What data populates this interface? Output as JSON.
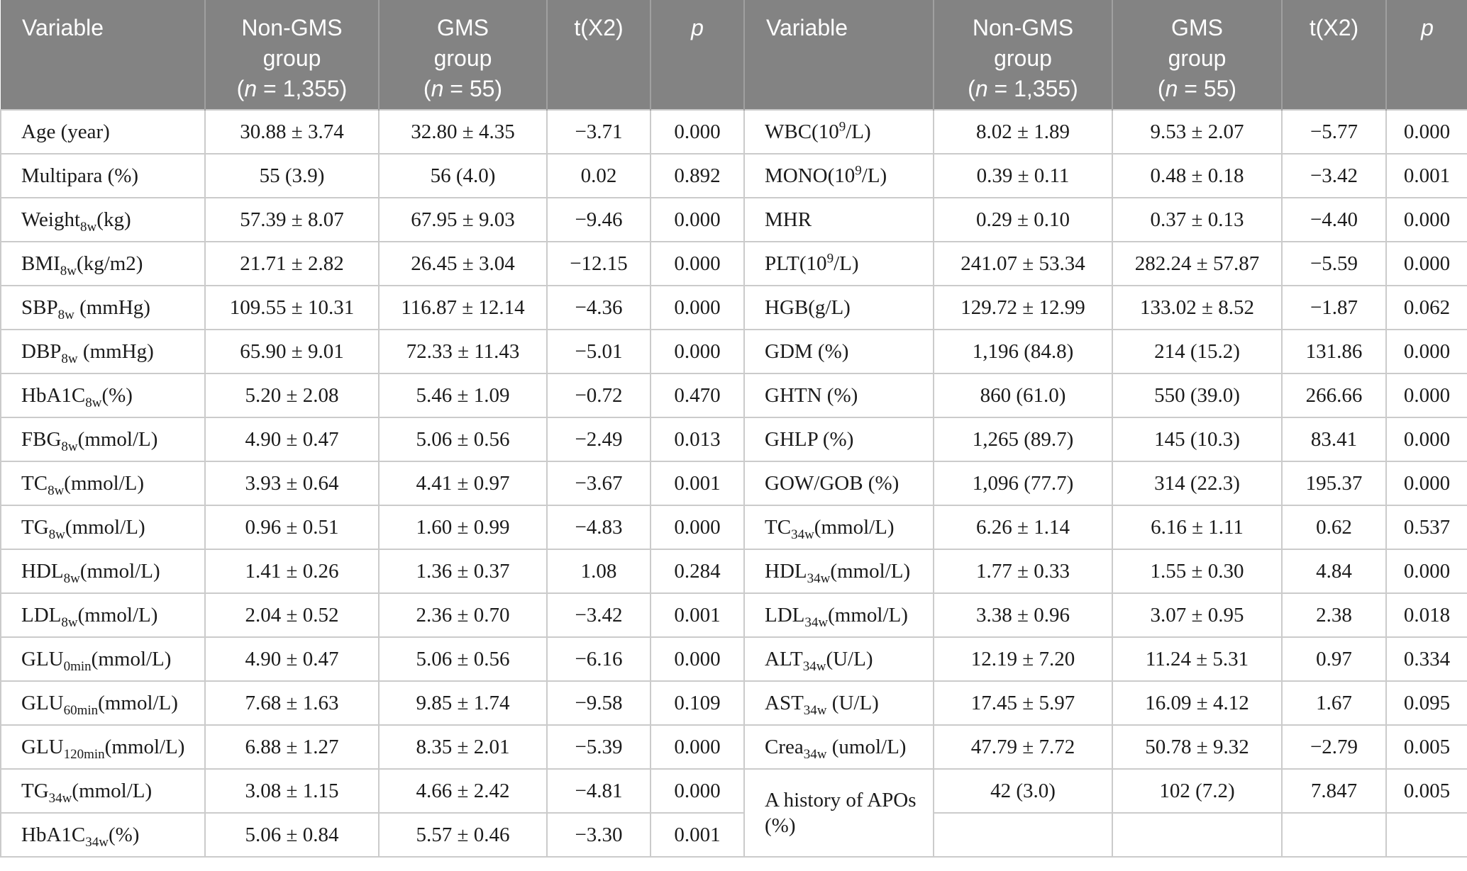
{
  "table": {
    "description": "Comparison of variables between Non-GMS group and GMS group",
    "colors": {
      "header_bg": "#838383",
      "header_text": "#ffffff",
      "header_divider": "#a0a0a0",
      "cell_border": "#cbcbcb",
      "cell_text": "#1b1b1b",
      "cell_bg": "#ffffff"
    },
    "columns": [
      {
        "align": "left",
        "lines": [
          [
            [
              "Variable"
            ]
          ]
        ]
      },
      {
        "lines": [
          [
            [
              "Non-GMS"
            ]
          ],
          [
            [
              "group"
            ]
          ],
          [
            [
              "("
            ],
            [
              "n",
              "i"
            ],
            [
              " = 1,355)"
            ]
          ]
        ]
      },
      {
        "lines": [
          [
            [
              "GMS"
            ]
          ],
          [
            [
              "group"
            ]
          ],
          [
            [
              "("
            ],
            [
              "n",
              "i"
            ],
            [
              " = 55)"
            ]
          ]
        ]
      },
      {
        "lines": [
          [
            [
              "t(X2)"
            ]
          ]
        ]
      },
      {
        "lines": [
          [
            [
              "p",
              "i"
            ]
          ]
        ]
      },
      {
        "align": "left",
        "lines": [
          [
            [
              "Variable"
            ]
          ]
        ]
      },
      {
        "lines": [
          [
            [
              "Non-GMS"
            ]
          ],
          [
            [
              "group"
            ]
          ],
          [
            [
              "("
            ],
            [
              "n",
              "i"
            ],
            [
              " = 1,355)"
            ]
          ]
        ]
      },
      {
        "lines": [
          [
            [
              "GMS"
            ]
          ],
          [
            [
              "group"
            ]
          ],
          [
            [
              "("
            ],
            [
              "n",
              "i"
            ],
            [
              " = 55)"
            ]
          ]
        ]
      },
      {
        "lines": [
          [
            [
              "t(X2)"
            ]
          ]
        ]
      },
      {
        "lines": [
          [
            [
              "p",
              "i"
            ]
          ]
        ]
      }
    ],
    "rows": [
      {
        "cells": [
          {
            "var": true,
            "t": [
              [
                "Age (year)"
              ]
            ]
          },
          {
            "t": "30.88 ± 3.74"
          },
          {
            "t": "32.80 ± 4.35"
          },
          {
            "t": "−3.71"
          },
          {
            "t": "0.000"
          },
          {
            "var": true,
            "t": [
              [
                "WBC(10"
              ],
              [
                "9",
                "sup"
              ],
              [
                "/L)"
              ]
            ]
          },
          {
            "t": "8.02 ± 1.89"
          },
          {
            "t": "9.53 ± 2.07"
          },
          {
            "t": "−5.77"
          },
          {
            "t": "0.000"
          }
        ]
      },
      {
        "cells": [
          {
            "var": true,
            "t": [
              [
                "Multipara (%)"
              ]
            ]
          },
          {
            "t": "55 (3.9)"
          },
          {
            "t": "56 (4.0)"
          },
          {
            "t": "0.02"
          },
          {
            "t": "0.892"
          },
          {
            "var": true,
            "t": [
              [
                "MONO(10"
              ],
              [
                "9",
                "sup"
              ],
              [
                "/L)"
              ]
            ]
          },
          {
            "t": "0.39 ± 0.11"
          },
          {
            "t": "0.48 ± 0.18"
          },
          {
            "t": "−3.42"
          },
          {
            "t": "0.001"
          }
        ]
      },
      {
        "cells": [
          {
            "var": true,
            "t": [
              [
                "Weight"
              ],
              [
                "8w",
                "sub"
              ],
              [
                "(kg)"
              ]
            ]
          },
          {
            "t": "57.39 ± 8.07"
          },
          {
            "t": "67.95 ± 9.03"
          },
          {
            "t": "−9.46"
          },
          {
            "t": "0.000"
          },
          {
            "var": true,
            "t": [
              [
                "MHR"
              ]
            ]
          },
          {
            "t": "0.29 ± 0.10"
          },
          {
            "t": "0.37 ± 0.13"
          },
          {
            "t": "−4.40"
          },
          {
            "t": "0.000"
          }
        ]
      },
      {
        "cells": [
          {
            "var": true,
            "t": [
              [
                "BMI"
              ],
              [
                "8w",
                "sub"
              ],
              [
                "(kg/m2)"
              ]
            ]
          },
          {
            "t": "21.71 ± 2.82"
          },
          {
            "t": "26.45 ± 3.04"
          },
          {
            "t": "−12.15"
          },
          {
            "t": "0.000"
          },
          {
            "var": true,
            "t": [
              [
                "PLT(10"
              ],
              [
                "9",
                "sup"
              ],
              [
                "/L)"
              ]
            ]
          },
          {
            "t": "241.07 ± 53.34"
          },
          {
            "t": "282.24 ± 57.87"
          },
          {
            "t": "−5.59"
          },
          {
            "t": "0.000"
          }
        ]
      },
      {
        "cells": [
          {
            "var": true,
            "t": [
              [
                "SBP"
              ],
              [
                "8w",
                "sub"
              ],
              [
                " (mmHg)"
              ]
            ]
          },
          {
            "t": "109.55 ± 10.31"
          },
          {
            "t": "116.87 ± 12.14"
          },
          {
            "t": "−4.36"
          },
          {
            "t": "0.000"
          },
          {
            "var": true,
            "t": [
              [
                "HGB(g/L)"
              ]
            ]
          },
          {
            "t": "129.72 ± 12.99"
          },
          {
            "t": "133.02 ± 8.52"
          },
          {
            "t": "−1.87"
          },
          {
            "t": "0.062"
          }
        ]
      },
      {
        "cells": [
          {
            "var": true,
            "t": [
              [
                "DBP"
              ],
              [
                "8w",
                "sub"
              ],
              [
                " (mmHg)"
              ]
            ]
          },
          {
            "t": "65.90 ± 9.01"
          },
          {
            "t": "72.33 ± 11.43"
          },
          {
            "t": "−5.01"
          },
          {
            "t": "0.000"
          },
          {
            "var": true,
            "t": [
              [
                "GDM (%)"
              ]
            ]
          },
          {
            "t": "1,196 (84.8)"
          },
          {
            "t": "214 (15.2)"
          },
          {
            "t": "131.86"
          },
          {
            "t": "0.000"
          }
        ]
      },
      {
        "cells": [
          {
            "var": true,
            "t": [
              [
                "HbA1C"
              ],
              [
                "8w",
                "sub"
              ],
              [
                "(%)"
              ]
            ]
          },
          {
            "t": "5.20 ± 2.08"
          },
          {
            "t": "5.46 ± 1.09"
          },
          {
            "t": "−0.72"
          },
          {
            "t": "0.470"
          },
          {
            "var": true,
            "t": [
              [
                "GHTN (%)"
              ]
            ]
          },
          {
            "t": "860 (61.0)"
          },
          {
            "t": "550 (39.0)"
          },
          {
            "t": "266.66"
          },
          {
            "t": "0.000"
          }
        ]
      },
      {
        "cells": [
          {
            "var": true,
            "t": [
              [
                "FBG"
              ],
              [
                "8w",
                "sub"
              ],
              [
                "(mmol/L)"
              ]
            ]
          },
          {
            "t": "4.90 ± 0.47"
          },
          {
            "t": "5.06 ± 0.56"
          },
          {
            "t": "−2.49"
          },
          {
            "t": "0.013"
          },
          {
            "var": true,
            "t": [
              [
                "GHLP (%)"
              ]
            ]
          },
          {
            "t": "1,265 (89.7)"
          },
          {
            "t": "145 (10.3)"
          },
          {
            "t": "83.41"
          },
          {
            "t": "0.000"
          }
        ]
      },
      {
        "cells": [
          {
            "var": true,
            "t": [
              [
                "TC"
              ],
              [
                "8w",
                "sub"
              ],
              [
                "(mmol/L)"
              ]
            ]
          },
          {
            "t": "3.93 ± 0.64"
          },
          {
            "t": "4.41 ± 0.97"
          },
          {
            "t": "−3.67"
          },
          {
            "t": "0.001"
          },
          {
            "var": true,
            "t": [
              [
                "GOW/GOB (%)"
              ]
            ]
          },
          {
            "t": "1,096 (77.7)"
          },
          {
            "t": "314 (22.3)"
          },
          {
            "t": "195.37"
          },
          {
            "t": "0.000"
          }
        ]
      },
      {
        "cells": [
          {
            "var": true,
            "t": [
              [
                "TG"
              ],
              [
                "8w",
                "sub"
              ],
              [
                "(mmol/L)"
              ]
            ]
          },
          {
            "t": "0.96 ± 0.51"
          },
          {
            "t": "1.60 ± 0.99"
          },
          {
            "t": "−4.83"
          },
          {
            "t": "0.000"
          },
          {
            "var": true,
            "t": [
              [
                "TC"
              ],
              [
                "34w",
                "sub"
              ],
              [
                "(mmol/L)"
              ]
            ]
          },
          {
            "t": "6.26 ± 1.14"
          },
          {
            "t": "6.16 ± 1.11"
          },
          {
            "t": "0.62"
          },
          {
            "t": "0.537"
          }
        ]
      },
      {
        "cells": [
          {
            "var": true,
            "t": [
              [
                "HDL"
              ],
              [
                "8w",
                "sub"
              ],
              [
                "(mmol/L)"
              ]
            ]
          },
          {
            "t": "1.41 ± 0.26"
          },
          {
            "t": "1.36 ± 0.37"
          },
          {
            "t": "1.08"
          },
          {
            "t": "0.284"
          },
          {
            "var": true,
            "t": [
              [
                "HDL"
              ],
              [
                "34w",
                "sub"
              ],
              [
                "(mmol/L)"
              ]
            ]
          },
          {
            "t": "1.77 ± 0.33"
          },
          {
            "t": "1.55 ± 0.30"
          },
          {
            "t": "4.84"
          },
          {
            "t": "0.000"
          }
        ]
      },
      {
        "cells": [
          {
            "var": true,
            "t": [
              [
                "LDL"
              ],
              [
                "8w",
                "sub"
              ],
              [
                "(mmol/L)"
              ]
            ]
          },
          {
            "t": "2.04 ± 0.52"
          },
          {
            "t": "2.36 ± 0.70"
          },
          {
            "t": "−3.42"
          },
          {
            "t": "0.001"
          },
          {
            "var": true,
            "t": [
              [
                "LDL"
              ],
              [
                "34w",
                "sub"
              ],
              [
                "(mmol/L)"
              ]
            ]
          },
          {
            "t": "3.38 ± 0.96"
          },
          {
            "t": "3.07 ± 0.95"
          },
          {
            "t": "2.38"
          },
          {
            "t": "0.018"
          }
        ]
      },
      {
        "cells": [
          {
            "var": true,
            "t": [
              [
                "GLU"
              ],
              [
                "0min",
                "sub"
              ],
              [
                "(mmol/L)"
              ]
            ]
          },
          {
            "t": "4.90 ± 0.47"
          },
          {
            "t": "5.06 ± 0.56"
          },
          {
            "t": "−6.16"
          },
          {
            "t": "0.000"
          },
          {
            "var": true,
            "t": [
              [
                "ALT"
              ],
              [
                "34w",
                "sub"
              ],
              [
                "(U/L)"
              ]
            ]
          },
          {
            "t": "12.19 ± 7.20"
          },
          {
            "t": "11.24 ± 5.31"
          },
          {
            "t": "0.97"
          },
          {
            "t": "0.334"
          }
        ]
      },
      {
        "cells": [
          {
            "var": true,
            "t": [
              [
                "GLU"
              ],
              [
                "60min",
                "sub"
              ],
              [
                "(mmol/L)"
              ]
            ]
          },
          {
            "t": "7.68 ± 1.63"
          },
          {
            "t": "9.85 ± 1.74"
          },
          {
            "t": "−9.58"
          },
          {
            "t": "0.109"
          },
          {
            "var": true,
            "t": [
              [
                "AST"
              ],
              [
                "34w",
                "sub"
              ],
              [
                " (U/L)"
              ]
            ]
          },
          {
            "t": "17.45 ± 5.97"
          },
          {
            "t": "16.09 ± 4.12"
          },
          {
            "t": "1.67"
          },
          {
            "t": "0.095"
          }
        ]
      },
      {
        "cells": [
          {
            "var": true,
            "t": [
              [
                "GLU"
              ],
              [
                "120min",
                "sub"
              ],
              [
                "(mmol/L)"
              ]
            ]
          },
          {
            "t": "6.88 ± 1.27"
          },
          {
            "t": "8.35 ± 2.01"
          },
          {
            "t": "−5.39"
          },
          {
            "t": "0.000"
          },
          {
            "var": true,
            "t": [
              [
                "Crea"
              ],
              [
                "34w",
                "sub"
              ],
              [
                " (umol/L)"
              ]
            ]
          },
          {
            "t": "47.79 ± 7.72"
          },
          {
            "t": "50.78 ± 9.32"
          },
          {
            "t": "−2.79"
          },
          {
            "t": "0.005"
          }
        ]
      },
      {
        "cells": [
          {
            "var": true,
            "t": [
              [
                "TG"
              ],
              [
                "34w",
                "sub"
              ],
              [
                "(mmol/L)"
              ]
            ]
          },
          {
            "t": "3.08 ± 1.15"
          },
          {
            "t": "4.66 ± 2.42"
          },
          {
            "t": "−4.81"
          },
          {
            "t": "0.000"
          },
          {
            "var": true,
            "rowspan": 2,
            "t": [
              [
                "A history of APOs (%)"
              ]
            ]
          },
          {
            "t": "42 (3.0)"
          },
          {
            "t": "102 (7.2)"
          },
          {
            "t": "7.847"
          },
          {
            "t": "0.005"
          }
        ]
      },
      {
        "cells": [
          {
            "var": true,
            "t": [
              [
                "HbA1C"
              ],
              [
                "34w",
                "sub"
              ],
              [
                "(%)"
              ]
            ]
          },
          {
            "t": "5.06 ± 0.84"
          },
          {
            "t": "5.57 ± 0.46"
          },
          {
            "t": "−3.30"
          },
          {
            "t": "0.001"
          },
          {
            "skip": true
          },
          {
            "t": ""
          },
          {
            "t": ""
          },
          {
            "t": ""
          },
          {
            "t": ""
          }
        ]
      }
    ]
  }
}
